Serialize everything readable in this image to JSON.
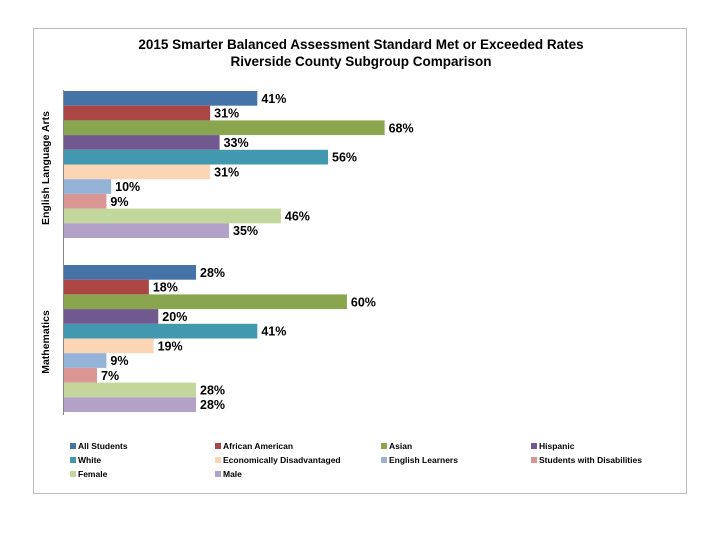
{
  "chart_data": {
    "type": "bar",
    "orientation": "horizontal",
    "title": "2015 Smarter Balanced Assessment Standard Met or Exceeded Rates",
    "subtitle": "Riverside County Subgroup Comparison",
    "categories": [
      "English Language Arts",
      "Mathematics"
    ],
    "value_suffix": "%",
    "xlim": [
      0,
      100
    ],
    "legend_position": "bottom",
    "series": [
      {
        "name": "All Students",
        "color": "#4572a7",
        "values": [
          41,
          28
        ]
      },
      {
        "name": "African American",
        "color": "#aa4643",
        "values": [
          31,
          18
        ]
      },
      {
        "name": "Asian",
        "color": "#89a54e",
        "values": [
          68,
          60
        ]
      },
      {
        "name": "Hispanic",
        "color": "#71588f",
        "values": [
          33,
          20
        ]
      },
      {
        "name": "White",
        "color": "#4198af",
        "values": [
          56,
          41
        ]
      },
      {
        "name": "Economically Disadvantaged",
        "color": "#fcd5b5",
        "values": [
          31,
          19
        ]
      },
      {
        "name": "English Learners",
        "color": "#95b3d7",
        "values": [
          10,
          9
        ]
      },
      {
        "name": "Students with Disabilities",
        "color": "#d99694",
        "values": [
          9,
          7
        ]
      },
      {
        "name": "Female",
        "color": "#c3d69b",
        "values": [
          46,
          28
        ]
      },
      {
        "name": "Male",
        "color": "#b3a2c7",
        "values": [
          35,
          28
        ]
      }
    ]
  }
}
